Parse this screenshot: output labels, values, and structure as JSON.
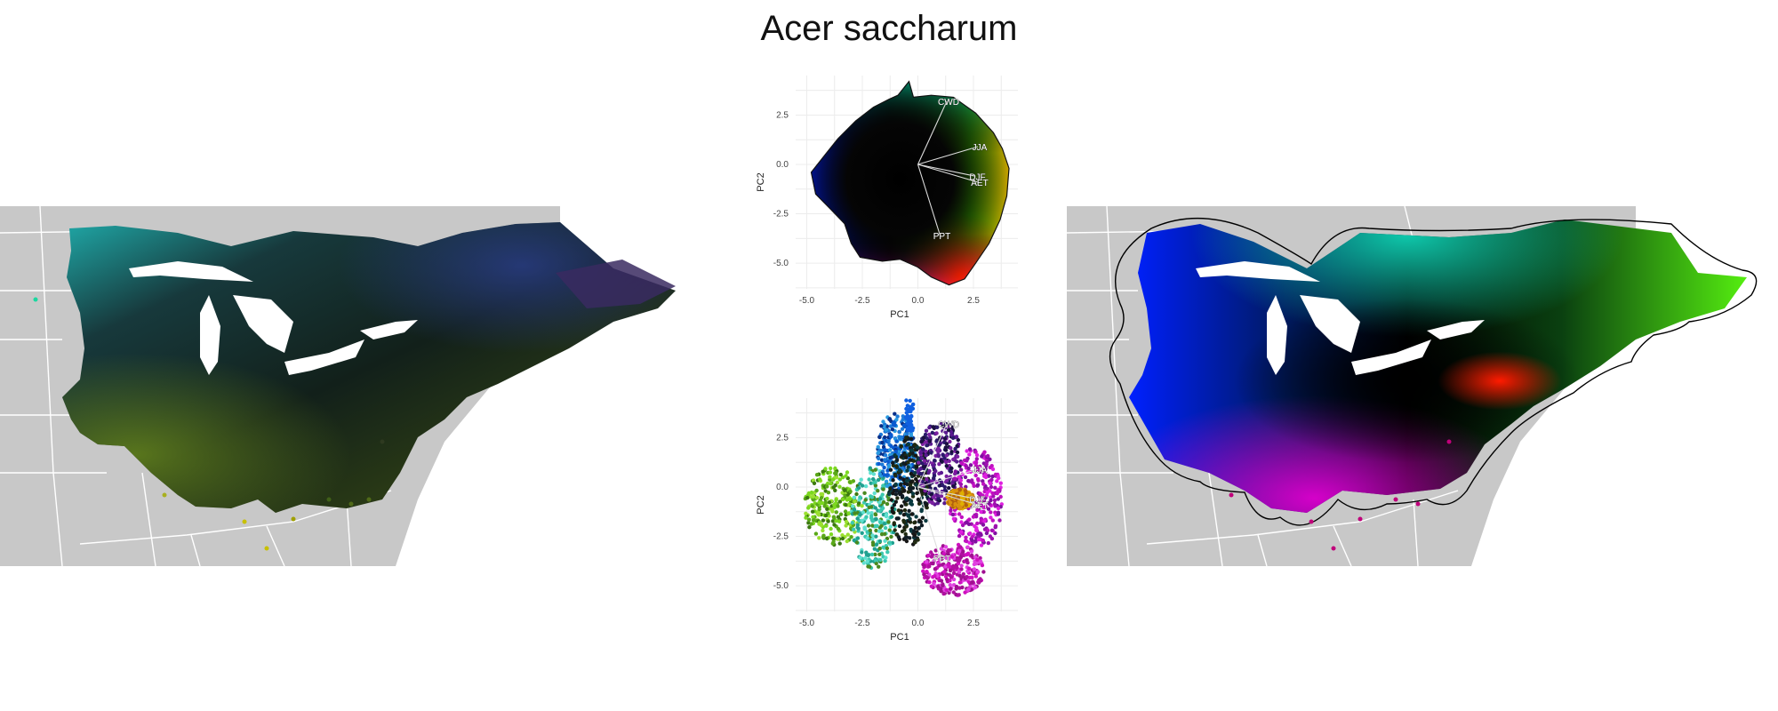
{
  "title": "Acer saccharum",
  "colors": {
    "land": "#c8c8c8",
    "border": "#ffffff",
    "water": "#ffffff",
    "hull": "#000000",
    "loading": "#ffffff",
    "grid": "#ececec"
  },
  "icons": {
    "left_map": "species-observed-range-map",
    "right_map": "species-hull-range-map"
  },
  "chart_data": [
    {
      "type": "scatter",
      "subtype": "pca-biplot-density",
      "title": "",
      "xlabel": "PC1",
      "ylabel": "PC2",
      "xlim": [
        -5.5,
        4.5
      ],
      "ylim": [
        -6.3,
        4.5
      ],
      "x_ticks": [
        -5.0,
        -2.5,
        0.0,
        2.5
      ],
      "y_ticks": [
        2.5,
        0.0,
        -2.5,
        -5.0
      ],
      "x_tick_labels": [
        "-5.0",
        "-2.5",
        "0.0",
        "2.5"
      ],
      "y_tick_labels": [
        "2.5",
        "0.0",
        "-2.5",
        "-5.0"
      ],
      "grid": true,
      "loadings": [
        {
          "label": "CWD",
          "x": 1.3,
          "y": 3.2
        },
        {
          "label": "JJA",
          "x": 2.7,
          "y": 0.9
        },
        {
          "label": "DJF",
          "x": 2.6,
          "y": -0.6
        },
        {
          "label": "AET",
          "x": 2.7,
          "y": -0.9
        },
        {
          "label": "PPT",
          "x": 1.0,
          "y": -3.6
        }
      ]
    },
    {
      "type": "scatter",
      "subtype": "pca-biplot-points",
      "title": "",
      "xlabel": "PC1",
      "ylabel": "PC2",
      "xlim": [
        -5.5,
        4.5
      ],
      "ylim": [
        -6.3,
        4.5
      ],
      "x_ticks": [
        -5.0,
        -2.5,
        0.0,
        2.5
      ],
      "y_ticks": [
        2.5,
        0.0,
        -2.5,
        -5.0
      ],
      "x_tick_labels": [
        "-5.0",
        "-2.5",
        "0.0",
        "2.5"
      ],
      "y_tick_labels": [
        "2.5",
        "0.0",
        "-2.5",
        "-5.0"
      ],
      "grid": true,
      "loadings": [
        {
          "label": "CWD",
          "x": 1.3,
          "y": 3.2
        },
        {
          "label": "JJA",
          "x": 2.7,
          "y": 0.9
        },
        {
          "label": "DJF",
          "x": 2.6,
          "y": -0.6
        },
        {
          "label": "AET",
          "x": 2.7,
          "y": -0.9
        },
        {
          "label": "PPT",
          "x": 1.0,
          "y": -3.6
        }
      ]
    }
  ]
}
